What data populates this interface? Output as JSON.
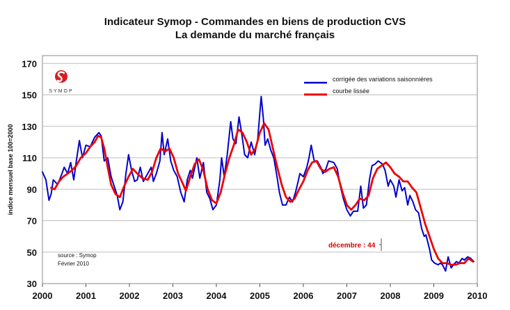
{
  "chart_data": {
    "type": "line",
    "title": "Indicateur Symop - Commandes en biens de production CVS",
    "subtitle": "La demande du marché français",
    "ylabel": "indice mensuel base 100=2000",
    "xlabel": "",
    "ylim": [
      30,
      175
    ],
    "xlim": [
      2000,
      2010
    ],
    "y_ticks": [
      30,
      50,
      70,
      90,
      110,
      130,
      150,
      170
    ],
    "x_ticks": [
      2000,
      2001,
      2002,
      2003,
      2004,
      2005,
      2006,
      2007,
      2008,
      2009,
      2010
    ],
    "grid": "horizontal",
    "legend_position": "top-right",
    "series": [
      {
        "name": "corrigée des variations saisonnières",
        "color": "#0000cc",
        "points": [
          [
            2000.0,
            101
          ],
          [
            2000.08,
            96
          ],
          [
            2000.15,
            83
          ],
          [
            2000.2,
            87
          ],
          [
            2000.25,
            96
          ],
          [
            2000.35,
            93
          ],
          [
            2000.45,
            100
          ],
          [
            2000.5,
            104
          ],
          [
            2000.58,
            100
          ],
          [
            2000.65,
            107
          ],
          [
            2000.72,
            96
          ],
          [
            2000.78,
            108
          ],
          [
            2000.85,
            121
          ],
          [
            2000.92,
            110
          ],
          [
            2001.0,
            118
          ],
          [
            2001.1,
            117
          ],
          [
            2001.2,
            123
          ],
          [
            2001.3,
            126
          ],
          [
            2001.35,
            124
          ],
          [
            2001.42,
            108
          ],
          [
            2001.5,
            110
          ],
          [
            2001.58,
            98
          ],
          [
            2001.65,
            92
          ],
          [
            2001.72,
            86
          ],
          [
            2001.78,
            77
          ],
          [
            2001.85,
            82
          ],
          [
            2001.92,
            100
          ],
          [
            2001.98,
            112
          ],
          [
            2002.05,
            102
          ],
          [
            2002.12,
            95
          ],
          [
            2002.18,
            96
          ],
          [
            2002.25,
            104
          ],
          [
            2002.32,
            95
          ],
          [
            2002.42,
            100
          ],
          [
            2002.5,
            104
          ],
          [
            2002.55,
            95
          ],
          [
            2002.62,
            100
          ],
          [
            2002.7,
            108
          ],
          [
            2002.75,
            126
          ],
          [
            2002.8,
            112
          ],
          [
            2002.88,
            122
          ],
          [
            2002.95,
            108
          ],
          [
            2003.02,
            102
          ],
          [
            2003.1,
            98
          ],
          [
            2003.18,
            88
          ],
          [
            2003.26,
            82
          ],
          [
            2003.33,
            96
          ],
          [
            2003.4,
            102
          ],
          [
            2003.45,
            97
          ],
          [
            2003.55,
            110
          ],
          [
            2003.62,
            97
          ],
          [
            2003.7,
            107
          ],
          [
            2003.78,
            88
          ],
          [
            2003.85,
            84
          ],
          [
            2003.92,
            77
          ],
          [
            2004.0,
            80
          ],
          [
            2004.08,
            96
          ],
          [
            2004.12,
            110
          ],
          [
            2004.18,
            98
          ],
          [
            2004.25,
            112
          ],
          [
            2004.33,
            133
          ],
          [
            2004.38,
            122
          ],
          [
            2004.45,
            119
          ],
          [
            2004.52,
            136
          ],
          [
            2004.58,
            126
          ],
          [
            2004.65,
            112
          ],
          [
            2004.72,
            110
          ],
          [
            2004.8,
            120
          ],
          [
            2004.88,
            112
          ],
          [
            2004.95,
            122
          ],
          [
            2005.03,
            149
          ],
          [
            2005.08,
            135
          ],
          [
            2005.12,
            118
          ],
          [
            2005.18,
            122
          ],
          [
            2005.25,
            115
          ],
          [
            2005.32,
            110
          ],
          [
            2005.4,
            97
          ],
          [
            2005.45,
            88
          ],
          [
            2005.52,
            80
          ],
          [
            2005.6,
            80
          ],
          [
            2005.68,
            85
          ],
          [
            2005.75,
            82
          ],
          [
            2005.82,
            88
          ],
          [
            2005.88,
            95
          ],
          [
            2005.92,
            100
          ],
          [
            2006.0,
            98
          ],
          [
            2006.08,
            104
          ],
          [
            2006.13,
            110
          ],
          [
            2006.18,
            118
          ],
          [
            2006.25,
            108
          ],
          [
            2006.32,
            108
          ],
          [
            2006.4,
            104
          ],
          [
            2006.45,
            100
          ],
          [
            2006.52,
            103
          ],
          [
            2006.58,
            108
          ],
          [
            2006.7,
            107
          ],
          [
            2006.78,
            103
          ],
          [
            2006.85,
            92
          ],
          [
            2006.92,
            84
          ],
          [
            2007.0,
            77
          ],
          [
            2007.08,
            73
          ],
          [
            2007.15,
            76
          ],
          [
            2007.25,
            76
          ],
          [
            2007.32,
            92
          ],
          [
            2007.38,
            78
          ],
          [
            2007.45,
            80
          ],
          [
            2007.52,
            96
          ],
          [
            2007.58,
            105
          ],
          [
            2007.65,
            106
          ],
          [
            2007.72,
            108
          ],
          [
            2007.82,
            106
          ],
          [
            2007.88,
            102
          ],
          [
            2007.95,
            92
          ],
          [
            2008.0,
            96
          ],
          [
            2008.08,
            92
          ],
          [
            2008.13,
            85
          ],
          [
            2008.2,
            96
          ],
          [
            2008.27,
            89
          ],
          [
            2008.33,
            91
          ],
          [
            2008.4,
            80
          ],
          [
            2008.45,
            86
          ],
          [
            2008.52,
            82
          ],
          [
            2008.58,
            77
          ],
          [
            2008.65,
            75
          ],
          [
            2008.72,
            65
          ],
          [
            2008.78,
            60
          ],
          [
            2008.82,
            61
          ],
          [
            2008.9,
            52
          ],
          [
            2008.95,
            45
          ],
          [
            2009.02,
            43
          ],
          [
            2009.1,
            42
          ],
          [
            2009.15,
            43
          ],
          [
            2009.2,
            42
          ],
          [
            2009.27,
            38
          ],
          [
            2009.33,
            47
          ],
          [
            2009.4,
            40
          ],
          [
            2009.45,
            42
          ],
          [
            2009.52,
            44
          ],
          [
            2009.58,
            43
          ],
          [
            2009.65,
            46
          ],
          [
            2009.7,
            45
          ],
          [
            2009.78,
            47
          ],
          [
            2009.85,
            46
          ],
          [
            2009.92,
            44
          ]
        ]
      },
      {
        "name": "courbe lissée",
        "color": "#ee0000",
        "points": [
          [
            2000.2,
            91
          ],
          [
            2000.28,
            90
          ],
          [
            2000.38,
            95
          ],
          [
            2000.48,
            98
          ],
          [
            2000.58,
            100
          ],
          [
            2000.68,
            102
          ],
          [
            2000.78,
            105
          ],
          [
            2000.88,
            110
          ],
          [
            2001.0,
            113
          ],
          [
            2001.1,
            117
          ],
          [
            2001.2,
            120
          ],
          [
            2001.28,
            124
          ],
          [
            2001.35,
            123
          ],
          [
            2001.42,
            116
          ],
          [
            2001.5,
            104
          ],
          [
            2001.58,
            93
          ],
          [
            2001.68,
            87
          ],
          [
            2001.78,
            85
          ],
          [
            2001.88,
            92
          ],
          [
            2001.98,
            98
          ],
          [
            2002.08,
            103
          ],
          [
            2002.18,
            100
          ],
          [
            2002.3,
            97
          ],
          [
            2002.42,
            96
          ],
          [
            2002.52,
            101
          ],
          [
            2002.62,
            110
          ],
          [
            2002.72,
            116
          ],
          [
            2002.82,
            114
          ],
          [
            2002.92,
            116
          ],
          [
            2003.02,
            110
          ],
          [
            2003.12,
            100
          ],
          [
            2003.22,
            94
          ],
          [
            2003.3,
            89
          ],
          [
            2003.4,
            98
          ],
          [
            2003.5,
            106
          ],
          [
            2003.6,
            109
          ],
          [
            2003.7,
            102
          ],
          [
            2003.8,
            90
          ],
          [
            2003.9,
            83
          ],
          [
            2004.0,
            81
          ],
          [
            2004.1,
            88
          ],
          [
            2004.2,
            100
          ],
          [
            2004.3,
            110
          ],
          [
            2004.4,
            118
          ],
          [
            2004.5,
            128
          ],
          [
            2004.6,
            126
          ],
          [
            2004.7,
            120
          ],
          [
            2004.8,
            112
          ],
          [
            2004.9,
            116
          ],
          [
            2005.0,
            126
          ],
          [
            2005.1,
            132
          ],
          [
            2005.2,
            128
          ],
          [
            2005.3,
            116
          ],
          [
            2005.4,
            104
          ],
          [
            2005.5,
            93
          ],
          [
            2005.6,
            85
          ],
          [
            2005.7,
            82
          ],
          [
            2005.8,
            84
          ],
          [
            2005.9,
            90
          ],
          [
            2006.0,
            95
          ],
          [
            2006.1,
            102
          ],
          [
            2006.2,
            107
          ],
          [
            2006.3,
            108
          ],
          [
            2006.4,
            103
          ],
          [
            2006.5,
            101
          ],
          [
            2006.6,
            103
          ],
          [
            2006.7,
            104
          ],
          [
            2006.8,
            98
          ],
          [
            2006.9,
            88
          ],
          [
            2007.0,
            80
          ],
          [
            2007.1,
            77
          ],
          [
            2007.2,
            80
          ],
          [
            2007.3,
            84
          ],
          [
            2007.4,
            83
          ],
          [
            2007.5,
            86
          ],
          [
            2007.6,
            97
          ],
          [
            2007.7,
            103
          ],
          [
            2007.8,
            105
          ],
          [
            2007.9,
            107
          ],
          [
            2008.0,
            104
          ],
          [
            2008.1,
            100
          ],
          [
            2008.2,
            98
          ],
          [
            2008.3,
            95
          ],
          [
            2008.4,
            95
          ],
          [
            2008.5,
            91
          ],
          [
            2008.6,
            88
          ],
          [
            2008.7,
            78
          ],
          [
            2008.8,
            68
          ],
          [
            2008.9,
            60
          ],
          [
            2009.0,
            52
          ],
          [
            2009.1,
            46
          ],
          [
            2009.2,
            43
          ],
          [
            2009.3,
            43
          ],
          [
            2009.4,
            42
          ],
          [
            2009.5,
            42
          ],
          [
            2009.6,
            43
          ],
          [
            2009.7,
            43
          ],
          [
            2009.8,
            46
          ],
          [
            2009.9,
            44
          ]
        ]
      }
    ],
    "annotations": {
      "last_value": "décembre : 44",
      "source_line1": "source : Symop",
      "source_line2": "Février 2010"
    }
  },
  "logo": {
    "text": "SYMOP",
    "color": "#d42020"
  }
}
